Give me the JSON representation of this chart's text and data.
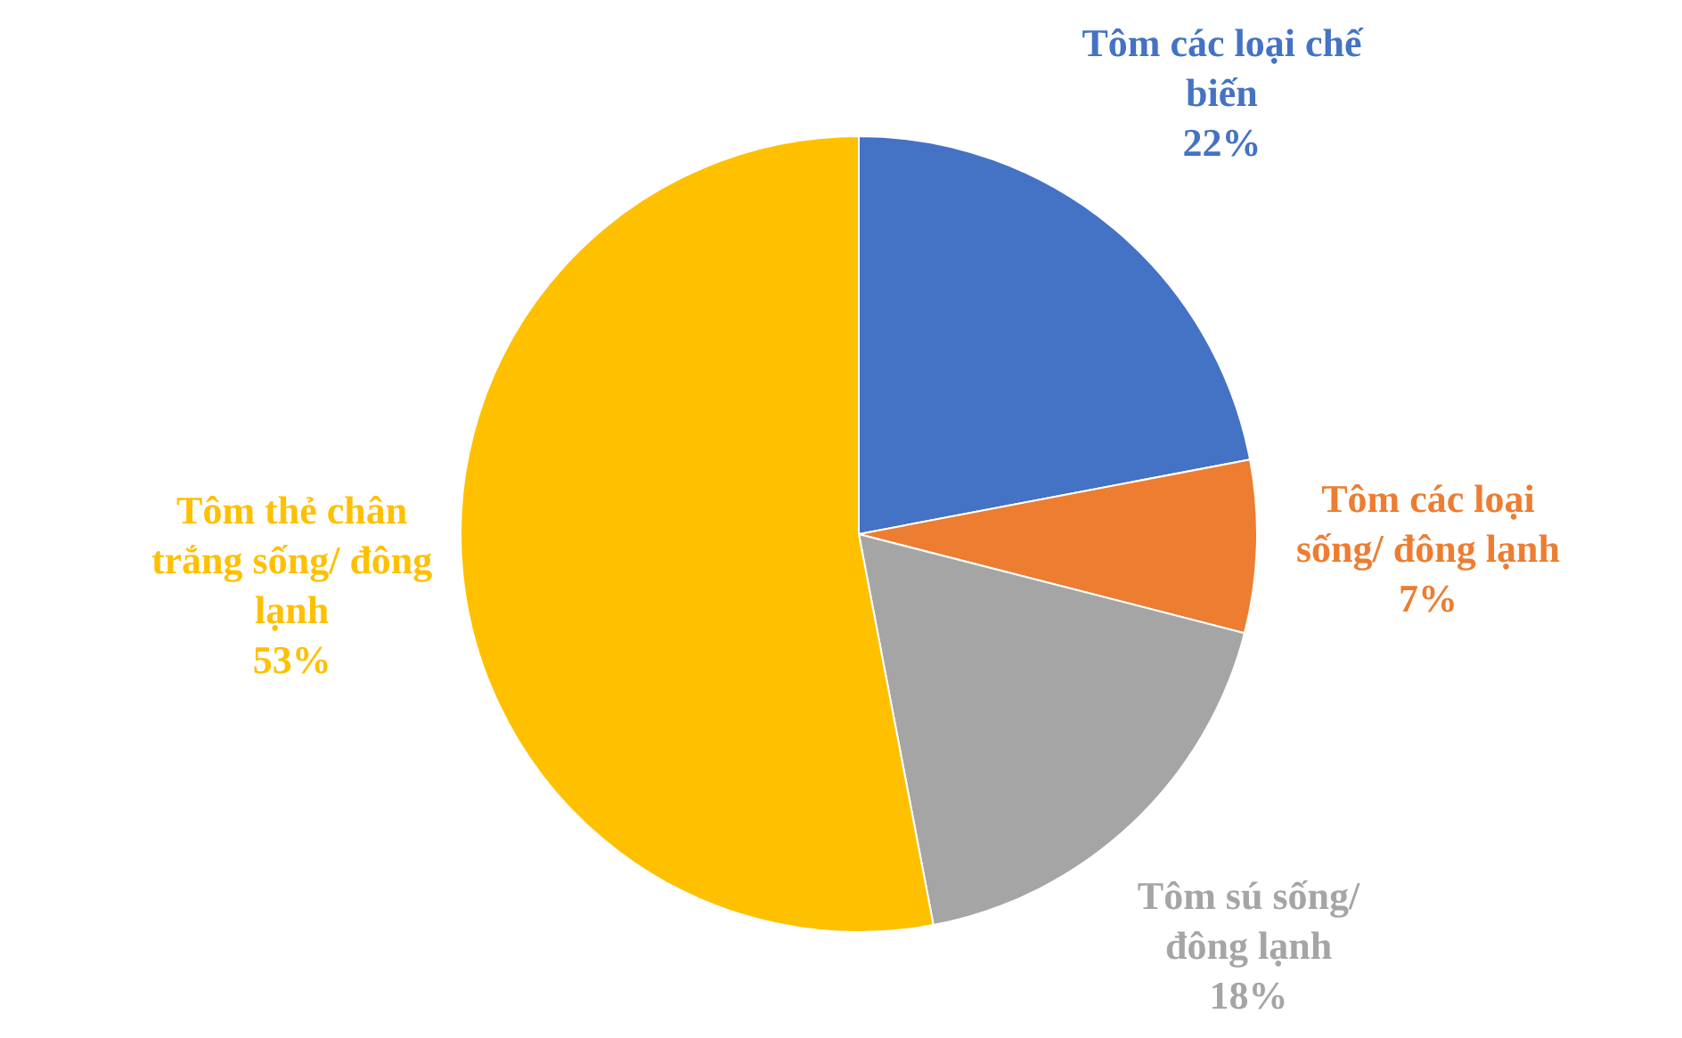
{
  "chart_data": {
    "type": "pie",
    "categories": [
      "Tôm các loại chế biến",
      "Tôm các loại sống/ đông lạnh",
      "Tôm sú sống/ đông lạnh",
      "Tôm thẻ chân trắng sống/ đông lạnh"
    ],
    "values": [
      22,
      7,
      18,
      53
    ],
    "colors": [
      "#4472c4",
      "#ed7d31",
      "#a5a5a5",
      "#ffc000"
    ],
    "value_labels": [
      "22%",
      "7%",
      "18%",
      "53%"
    ],
    "legend": false
  }
}
